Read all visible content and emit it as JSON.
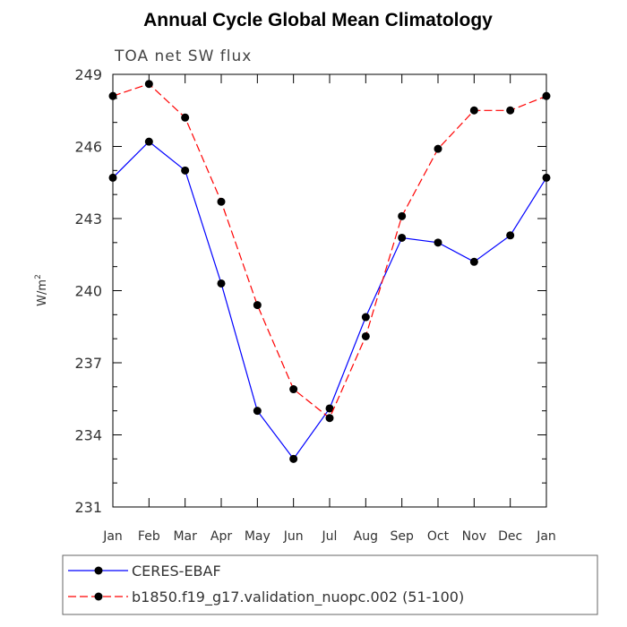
{
  "chart_data": {
    "type": "line",
    "title": "Annual Cycle Global Mean Climatology",
    "subtitle": "TOA net SW flux",
    "xlabel": "",
    "ylabel": "W/m",
    "ylabel_superscript": "2",
    "categories": [
      "Jan",
      "Feb",
      "Mar",
      "Apr",
      "May",
      "Jun",
      "Jul",
      "Aug",
      "Sep",
      "Oct",
      "Nov",
      "Dec",
      "Jan"
    ],
    "ylim": [
      231,
      249
    ],
    "yticks": [
      231,
      234,
      237,
      240,
      243,
      246,
      249
    ],
    "grid": false,
    "legend_position": "bottom",
    "series": [
      {
        "name": "CERES-EBAF",
        "color": "#0000ff",
        "line_style": "solid",
        "marker": "filled-circle",
        "values": [
          244.7,
          246.2,
          245.0,
          240.3,
          235.0,
          233.0,
          235.1,
          238.9,
          242.2,
          242.0,
          241.2,
          242.3,
          244.7
        ]
      },
      {
        "name": "b1850.f19_g17.validation_nuopc.002 (51-100)",
        "color": "#ff0000",
        "line_style": "dashed",
        "marker": "filled-circle",
        "values": [
          248.1,
          248.6,
          247.2,
          243.7,
          239.4,
          235.9,
          234.7,
          238.1,
          243.1,
          245.9,
          247.5,
          247.5,
          248.1
        ]
      }
    ]
  }
}
